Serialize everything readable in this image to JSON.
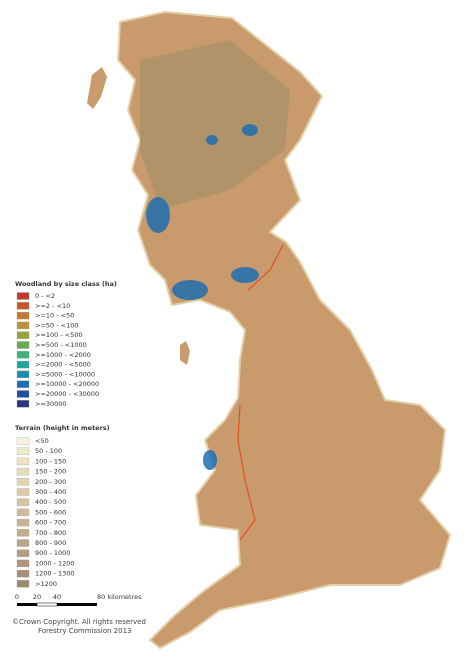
{
  "woodland_legend": {
    "title": "Woodland by size class (ha)",
    "items": [
      {
        "label": "0 - <2",
        "color": "#c0392b"
      },
      {
        "label": ">=2 - <10",
        "color": "#c8552a"
      },
      {
        "label": ">=10 - <50",
        "color": "#c27a35"
      },
      {
        "label": ">=50 - <100",
        "color": "#b8923a"
      },
      {
        "label": ">=100 - <500",
        "color": "#9aa23e"
      },
      {
        "label": ">=500 - <1000",
        "color": "#6aa84f"
      },
      {
        "label": ">=1000 - <2000",
        "color": "#3fae7a"
      },
      {
        "label": ">=2000 - <5000",
        "color": "#1fa6a0"
      },
      {
        "label": ">=5000 - <10000",
        "color": "#1b8fb0"
      },
      {
        "label": ">=10000 - <20000",
        "color": "#1f6fb0"
      },
      {
        "label": ">=20000 - <30000",
        "color": "#1f4f9a"
      },
      {
        "label": ">=30000",
        "color": "#2b3580"
      }
    ]
  },
  "terrain_legend": {
    "title": "Terrain (height in meters)",
    "items": [
      {
        "label": "<50",
        "color": "#f7f2d8"
      },
      {
        "label": "50 - 100",
        "color": "#f2ead0"
      },
      {
        "label": "100 - 150",
        "color": "#ede2c6"
      },
      {
        "label": "150 - 200",
        "color": "#e8dbbd"
      },
      {
        "label": "200 - 300",
        "color": "#e2d3b4"
      },
      {
        "label": "300 - 400",
        "color": "#dccbab"
      },
      {
        "label": "400 - 500",
        "color": "#d6c3a3"
      },
      {
        "label": "500 - 600",
        "color": "#cfbb9b"
      },
      {
        "label": "600 - 700",
        "color": "#c9b394"
      },
      {
        "label": "700 - 800",
        "color": "#c2ab8d"
      },
      {
        "label": "800 - 900",
        "color": "#bba487"
      },
      {
        "label": "900 - 1000",
        "color": "#b49d81"
      },
      {
        "label": "1000 - 1200",
        "color": "#ad967b"
      },
      {
        "label": "1200 - 1300",
        "color": "#a69076"
      },
      {
        "label": ">1200",
        "color": "#9f8a71"
      }
    ]
  },
  "scale_bar": {
    "labels": [
      "0",
      "20",
      "40",
      "80 kilometres"
    ]
  },
  "credits": {
    "copyright": "©Crown Copyright. All rights reserved",
    "agency": "Forestry Commission 2013"
  }
}
